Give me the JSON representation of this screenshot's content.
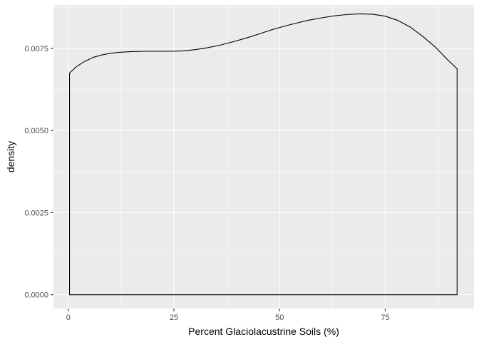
{
  "chart_data": {
    "type": "area",
    "xlabel": "Percent Glaciolacustrine Soils (%)",
    "ylabel": "density",
    "xlim": [
      -3.5,
      96
    ],
    "ylim": [
      -0.00042,
      0.00882
    ],
    "x_ticks": [
      0,
      25,
      50,
      75
    ],
    "x_tick_labels": [
      "0",
      "25",
      "50",
      "75"
    ],
    "y_ticks": [
      0,
      0.0025,
      0.005,
      0.0075
    ],
    "y_tick_labels": [
      "0.0000",
      "0.0025",
      "0.0050",
      "0.0075"
    ],
    "grid": true,
    "panel_color": "#ebebeb",
    "grid_color": "#ffffff",
    "line_color": "#000000",
    "series": [
      {
        "x": [
          0.3,
          2,
          4,
          6,
          8,
          10,
          12,
          15,
          18,
          21,
          24,
          27,
          30,
          33,
          36,
          39,
          42,
          45,
          48,
          51,
          54,
          57,
          60,
          63,
          66,
          69,
          72,
          75,
          78,
          81,
          84,
          87,
          90,
          92
        ],
        "y": [
          0.00675,
          0.00695,
          0.00711,
          0.00723,
          0.0073,
          0.00735,
          0.00738,
          0.0074,
          0.00741,
          0.00741,
          0.00741,
          0.00742,
          0.00746,
          0.00752,
          0.0076,
          0.0077,
          0.00781,
          0.00793,
          0.00806,
          0.00817,
          0.00827,
          0.00836,
          0.00843,
          0.00849,
          0.00853,
          0.00855,
          0.00854,
          0.00848,
          0.00835,
          0.00814,
          0.00785,
          0.00752,
          0.00712,
          0.00688
        ]
      }
    ]
  }
}
